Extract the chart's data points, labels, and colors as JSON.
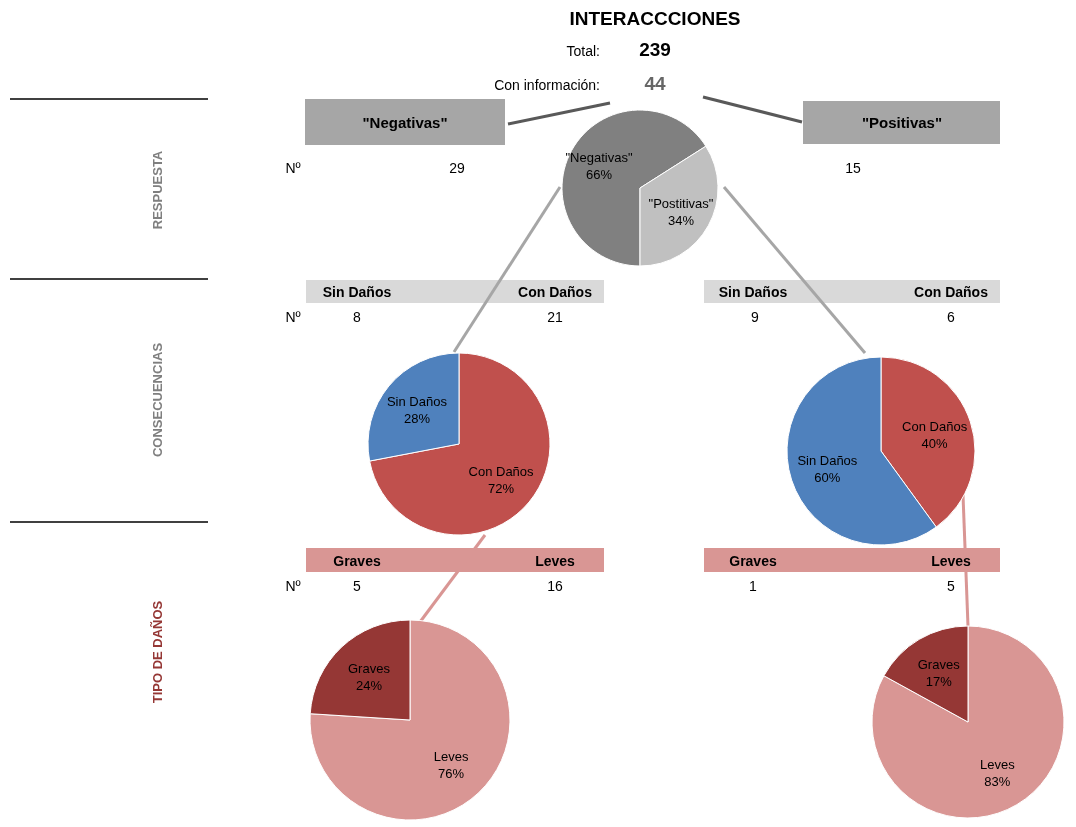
{
  "chart_data": [
    {
      "type": "other",
      "title": "INTERACCCIONES",
      "annotations": [
        "Total:",
        "239",
        "Con información:",
        "44",
        "RESPUESTA",
        "CONSECUENCIAS",
        "TIPO DE DAÑOS",
        "\"Negativas\"",
        "\"Positivas\"",
        "Nº",
        "29",
        "15",
        "Sin Daños",
        "Con Daños",
        "Sin Daños",
        "Con Daños",
        "Nº",
        "8",
        "21",
        "9",
        "6",
        "Graves",
        "Leves",
        "Graves",
        "Leves",
        "Nº",
        "5",
        "16",
        "1",
        "5"
      ]
    },
    {
      "type": "pie",
      "categories": [
        "\"Negativas\"",
        "\"Postitivas\""
      ],
      "values": [
        66,
        34
      ],
      "colors": [
        "#808080",
        "#c0c0c0"
      ],
      "value_labels": [
        "66%",
        "34%"
      ]
    },
    {
      "type": "pie",
      "categories": [
        "Con Daños",
        "Sin Daños"
      ],
      "values": [
        72,
        28
      ],
      "colors": [
        "#c0504d",
        "#4f81bd"
      ],
      "value_labels": [
        "72%",
        "28%"
      ]
    },
    {
      "type": "pie",
      "categories": [
        "Con Daños",
        "Sin Daños"
      ],
      "values": [
        40,
        60
      ],
      "colors": [
        "#c0504d",
        "#4f81bd"
      ],
      "value_labels": [
        "40%",
        "60%"
      ]
    },
    {
      "type": "pie",
      "categories": [
        "Leves",
        "Graves"
      ],
      "values": [
        76,
        24
      ],
      "colors": [
        "#d99694",
        "#953735"
      ],
      "value_labels": [
        "76%",
        "24%"
      ]
    },
    {
      "type": "pie",
      "categories": [
        "Leves",
        "Graves"
      ],
      "values": [
        83,
        17
      ],
      "colors": [
        "#d99694",
        "#953735"
      ],
      "value_labels": [
        "83%",
        "17%"
      ]
    }
  ]
}
